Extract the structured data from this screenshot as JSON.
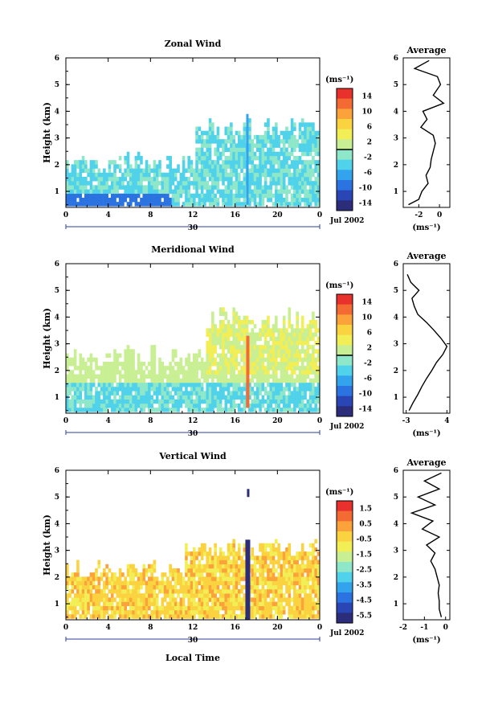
{
  "figure": {
    "xlabel": "Local Time",
    "date_label": "Jul 2002",
    "day_label": "30"
  },
  "chart_data": [
    {
      "type": "heatmap",
      "title": "Zonal Wind",
      "ylabel": "Height (km)",
      "xlabel": "Local Time",
      "x_ticks": [
        "0",
        "4",
        "8",
        "12",
        "16",
        "20",
        "0"
      ],
      "xlim": [
        0,
        24
      ],
      "y_ticks": [
        "1",
        "2",
        "3",
        "4",
        "5",
        "6"
      ],
      "ylim": [
        0.4,
        6
      ],
      "colorbar": {
        "unit": "(ms⁻¹)",
        "ticks": [
          "14",
          "10",
          "6",
          "2",
          "-2",
          "-6",
          "-10",
          "-14"
        ],
        "range": [
          -16,
          16
        ],
        "highlight": 0
      },
      "profile": {
        "title": "Average",
        "x_ticks": [
          "-2",
          "0"
        ],
        "xlim": [
          -3.5,
          1
        ],
        "unit": "(ms⁻¹)",
        "heights": [
          0.5,
          0.7,
          1.0,
          1.3,
          1.6,
          1.9,
          2.2,
          2.5,
          2.8,
          3.1,
          3.4,
          3.7,
          4.0,
          4.3,
          4.6,
          5.0,
          5.3,
          5.6,
          5.9
        ],
        "values": [
          -3.0,
          -2.0,
          -1.7,
          -1.1,
          -1.3,
          -0.9,
          -0.8,
          -0.6,
          -0.4,
          -0.6,
          -1.8,
          -1.2,
          -1.6,
          0.4,
          -0.6,
          0.1,
          -0.2,
          -2.4,
          -1.0
        ]
      }
    },
    {
      "type": "heatmap",
      "title": "Meridional Wind",
      "ylabel": "Height (km)",
      "xlabel": "Local Time",
      "x_ticks": [
        "0",
        "4",
        "8",
        "12",
        "16",
        "20",
        "0"
      ],
      "xlim": [
        0,
        24
      ],
      "y_ticks": [
        "1",
        "2",
        "3",
        "4",
        "5",
        "6"
      ],
      "ylim": [
        0.4,
        6
      ],
      "colorbar": {
        "unit": "(ms⁻¹)",
        "ticks": [
          "14",
          "10",
          "6",
          "2",
          "-2",
          "-6",
          "-10",
          "-14"
        ],
        "range": [
          -16,
          16
        ],
        "highlight": 0
      },
      "profile": {
        "title": "Average",
        "x_ticks": [
          "-3",
          "4"
        ],
        "xlim": [
          -3.5,
          4.5
        ],
        "heights": [
          0.5,
          0.8,
          1.1,
          1.4,
          1.7,
          2.0,
          2.3,
          2.6,
          2.9,
          3.2,
          3.5,
          3.8,
          4.1,
          4.4,
          4.7,
          5.0,
          5.3,
          5.6
        ],
        "values": [
          -2.5,
          -1.8,
          -1.0,
          -0.3,
          0.5,
          1.4,
          2.2,
          3.3,
          4.0,
          3.0,
          1.8,
          0.5,
          -1.0,
          -1.6,
          -2.0,
          -0.8,
          -2.2,
          -2.8
        ]
      }
    },
    {
      "type": "heatmap",
      "title": "Vertical Wind",
      "ylabel": "Height (km)",
      "xlabel": "Local Time",
      "x_ticks": [
        "0",
        "4",
        "8",
        "12",
        "16",
        "20",
        "0"
      ],
      "xlim": [
        0,
        24
      ],
      "y_ticks": [
        "1",
        "2",
        "3",
        "4",
        "5",
        "6"
      ],
      "ylim": [
        0.4,
        6
      ],
      "colorbar": {
        "unit": "(ms⁻¹)",
        "ticks": [
          "1.5",
          "0.5",
          "-0.5",
          "-1.5",
          "-2.5",
          "-3.5",
          "-4.5",
          "-5.5"
        ],
        "range": [
          -6,
          2
        ],
        "highlight": null
      },
      "profile": {
        "title": "Average",
        "x_ticks": [
          "-2",
          "-1",
          "0"
        ],
        "xlim": [
          -2,
          0.2
        ],
        "heights": [
          0.5,
          0.8,
          1.1,
          1.4,
          1.7,
          2.0,
          2.3,
          2.6,
          2.9,
          3.2,
          3.5,
          3.8,
          4.1,
          4.4,
          4.7,
          5.0,
          5.3,
          5.6,
          5.9
        ],
        "values": [
          -0.2,
          -0.3,
          -0.3,
          -0.35,
          -0.3,
          -0.4,
          -0.5,
          -0.7,
          -0.5,
          -0.9,
          -0.3,
          -1.1,
          -0.6,
          -1.6,
          -0.5,
          -1.3,
          -0.3,
          -1.0,
          -0.2
        ]
      }
    }
  ],
  "colors": {
    "scale": [
      "#2b2c7a",
      "#2a46b5",
      "#2a73e0",
      "#33a3ee",
      "#4fd2ea",
      "#8fe7c9",
      "#c9ef94",
      "#f2ee55",
      "#fbd23f",
      "#fba23a",
      "#f46a33",
      "#e8302c"
    ],
    "missing": "#ffffff"
  }
}
